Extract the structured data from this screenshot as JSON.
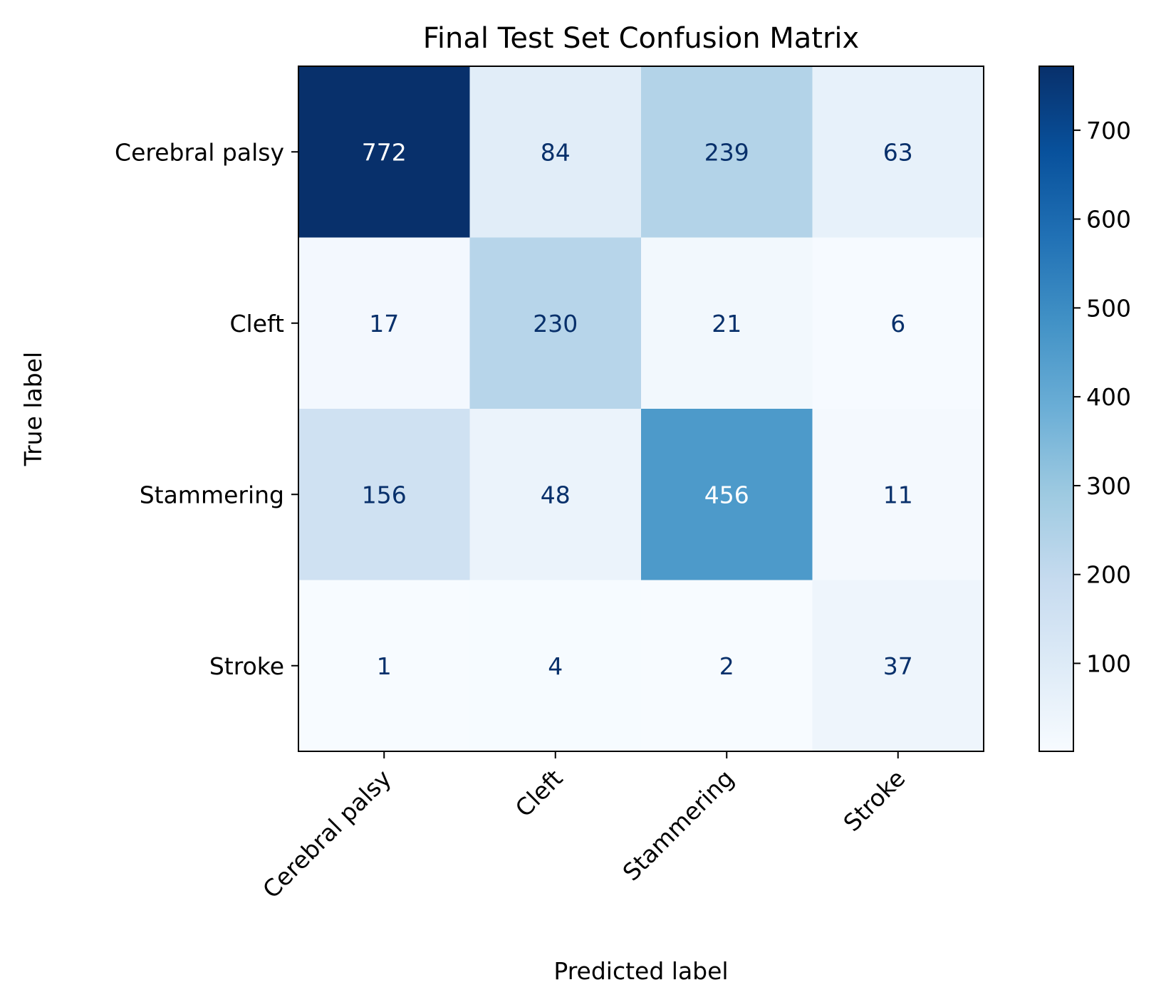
{
  "chart_data": {
    "type": "heatmap",
    "title": "Final Test Set Confusion Matrix",
    "xlabel": "Predicted label",
    "ylabel": "True label",
    "x_categories": [
      "Cerebral palsy",
      "Cleft",
      "Stammering",
      "Stroke"
    ],
    "y_categories": [
      "Cerebral palsy",
      "Cleft",
      "Stammering",
      "Stroke"
    ],
    "matrix": [
      [
        772,
        84,
        239,
        63
      ],
      [
        17,
        230,
        21,
        6
      ],
      [
        156,
        48,
        456,
        11
      ],
      [
        1,
        4,
        2,
        37
      ]
    ],
    "colormap": "Blues",
    "colorbar": {
      "range": [
        1,
        772
      ],
      "ticks": [
        100,
        200,
        300,
        400,
        500,
        600,
        700
      ]
    },
    "grid": false
  }
}
